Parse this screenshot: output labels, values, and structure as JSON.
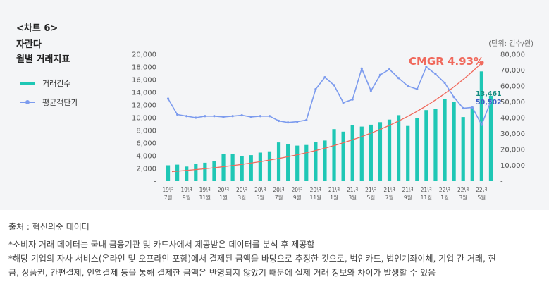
{
  "header": {
    "chart_label": "<차트 6>",
    "company": "자란다",
    "title": "월별 거래지표",
    "unit": "(단위: 건수/원)"
  },
  "legend": {
    "bar_label": "거래건수",
    "line_label": "평균객단가"
  },
  "colors": {
    "bar": "#1fc7b5",
    "line": "#7c9bee",
    "trend": "#f0695c",
    "panel": "#f4f5f7"
  },
  "chart_data": {
    "type": "bar",
    "x": [
      "19년 7월",
      "19년 8월",
      "19년 9월",
      "19년 10월",
      "19년 11월",
      "19년 12월",
      "20년 1월",
      "20년 2월",
      "20년 3월",
      "20년 4월",
      "20년 5월",
      "20년 6월",
      "20년 7월",
      "20년 8월",
      "20년 9월",
      "20년 10월",
      "20년 11월",
      "20년 12월",
      "21년 1월",
      "21년 2월",
      "21년 3월",
      "21년 4월",
      "21년 5월",
      "21년 6월",
      "21년 7월",
      "21년 8월",
      "21년 9월",
      "21년 10월",
      "21년 11월",
      "21년 12월",
      "22년 1월",
      "22년 2월",
      "22년 3월",
      "22년 4월",
      "22년 5월",
      "22년 6월"
    ],
    "x_tick_labels": [
      {
        "index": 0,
        "lines": [
          "19년",
          "7월"
        ]
      },
      {
        "index": 2,
        "lines": [
          "19년",
          "9월"
        ]
      },
      {
        "index": 4,
        "lines": [
          "19년",
          "11월"
        ]
      },
      {
        "index": 6,
        "lines": [
          "20년",
          "1월"
        ]
      },
      {
        "index": 8,
        "lines": [
          "20년",
          "3월"
        ]
      },
      {
        "index": 10,
        "lines": [
          "20년",
          "5월"
        ]
      },
      {
        "index": 12,
        "lines": [
          "20년",
          "7월"
        ]
      },
      {
        "index": 14,
        "lines": [
          "20년",
          "9월"
        ]
      },
      {
        "index": 16,
        "lines": [
          "20년",
          "11월"
        ]
      },
      {
        "index": 18,
        "lines": [
          "21년",
          "1월"
        ]
      },
      {
        "index": 20,
        "lines": [
          "21년",
          "3월"
        ]
      },
      {
        "index": 22,
        "lines": [
          "21년",
          "5월"
        ]
      },
      {
        "index": 24,
        "lines": [
          "21년",
          "7월"
        ]
      },
      {
        "index": 26,
        "lines": [
          "21년",
          "9월"
        ]
      },
      {
        "index": 28,
        "lines": [
          "21년",
          "11월"
        ]
      },
      {
        "index": 30,
        "lines": [
          "22년",
          "1월"
        ]
      },
      {
        "index": 32,
        "lines": [
          "22년",
          "3월"
        ]
      },
      {
        "index": 34,
        "lines": [
          "22년",
          "5월"
        ]
      }
    ],
    "series": [
      {
        "name": "거래건수",
        "type": "bar",
        "axis": "left",
        "values": [
          2500,
          2600,
          2300,
          2700,
          2900,
          3200,
          4300,
          4300,
          3900,
          4100,
          4500,
          4700,
          6100,
          5800,
          5600,
          5700,
          6200,
          6400,
          8200,
          7800,
          8800,
          8600,
          8900,
          9300,
          9700,
          10400,
          8700,
          10000,
          11200,
          11400,
          13000,
          12500,
          10100,
          11600,
          17300,
          13461
        ]
      },
      {
        "name": "평균객단가",
        "type": "line",
        "axis": "right",
        "values": [
          52000,
          42000,
          41000,
          40000,
          41000,
          41000,
          40500,
          41000,
          41500,
          40500,
          41000,
          41000,
          38000,
          37000,
          37500,
          38500,
          58000,
          65500,
          60500,
          49500,
          51500,
          71000,
          57000,
          67000,
          70500,
          65000,
          60000,
          58000,
          72000,
          67500,
          62000,
          53000,
          46000,
          46500,
          35500,
          50502
        ]
      }
    ],
    "trend": {
      "label": "CMGR 4.93%",
      "start": 1500,
      "end": 18800
    },
    "annotations": {
      "last_bar": "13,461",
      "last_line": "50,502"
    },
    "left_axis": {
      "ylim": [
        0,
        20000
      ],
      "ticks": [
        "-",
        "2,000",
        "4,000",
        "6,000",
        "8,000",
        "10,000",
        "12,000",
        "14,000",
        "16,000",
        "18,000",
        "20,000"
      ]
    },
    "right_axis": {
      "ylim": [
        0,
        80000
      ],
      "ticks": [
        "-",
        "10,000",
        "20,000",
        "30,000",
        "40,000",
        "50,000",
        "60,000",
        "70,000",
        "80,000"
      ]
    },
    "grid": false,
    "legend_position": "left"
  },
  "footnotes": {
    "source": "출처 : 혁신의숲 데이터",
    "note1": "*소비자 거래 데이터는 국내 금융기관 및 카드사에서 제공받은 데이터를 분석 후 제공함",
    "note2a": "*해당 기업의 자사 서비스(온라인 및 오프라인 포함)에서 결제된 금액을 바탕으로 추정한 것으로, 법인카드, 법인계좌이체, 기업 간 거래, 현",
    "note2b": "금, 상품권, 간편결제, 인앱결제 등을 통해 결제한 금액은 반영되지 않았기 때문에 실제 거래 정보와 차이가 발생할 수 있음"
  }
}
